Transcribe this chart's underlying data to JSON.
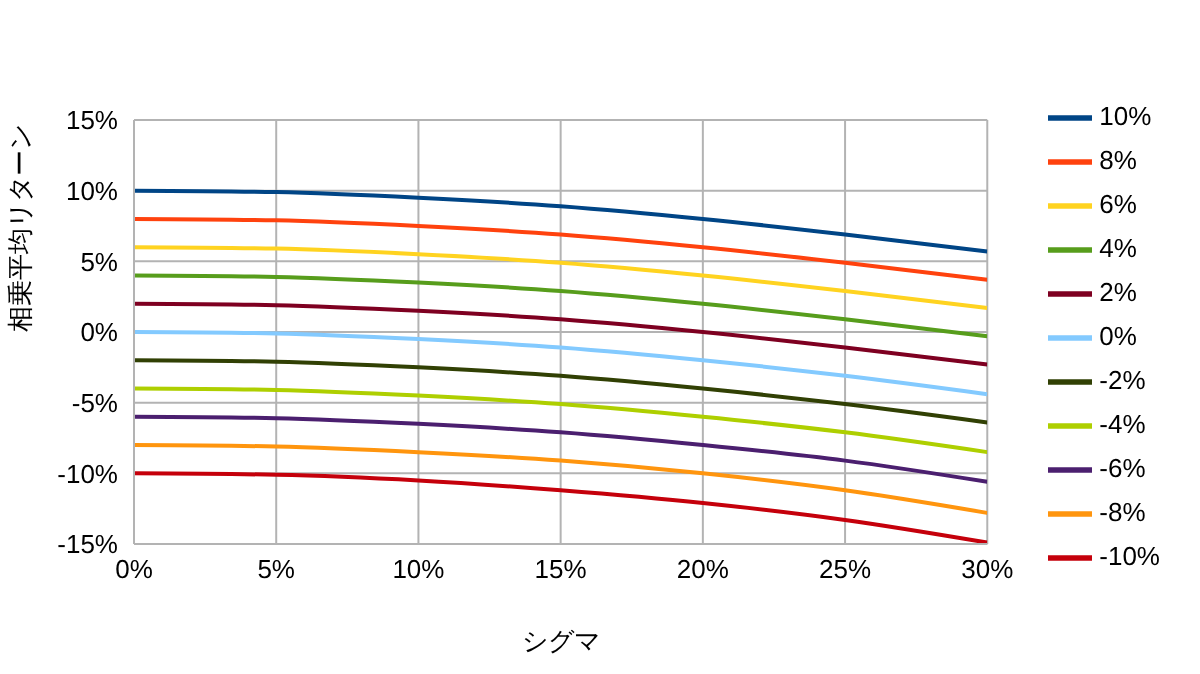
{
  "chart_data": {
    "type": "line",
    "xlabel": "シグマ",
    "ylabel": "相乗平均リターン",
    "x": [
      0,
      5,
      10,
      15,
      20,
      25,
      30
    ],
    "series": [
      {
        "name": "10%",
        "color": "#004586",
        "values": [
          10,
          9.9,
          9.5,
          8.9,
          8,
          6.9,
          5.7
        ]
      },
      {
        "name": "8%",
        "color": "#ff420e",
        "values": [
          8,
          7.9,
          7.5,
          6.9,
          6,
          4.9,
          3.7
        ]
      },
      {
        "name": "6%",
        "color": "#ffd320",
        "values": [
          6,
          5.9,
          5.5,
          4.9,
          4,
          2.9,
          1.7
        ]
      },
      {
        "name": "4%",
        "color": "#579d1c",
        "values": [
          4,
          3.9,
          3.5,
          2.9,
          2,
          0.9,
          -0.3
        ]
      },
      {
        "name": "2%",
        "color": "#7e0021",
        "values": [
          2,
          1.9,
          1.5,
          0.9,
          0,
          -1.1,
          -2.3
        ]
      },
      {
        "name": "0%",
        "color": "#83caff",
        "values": [
          0,
          -0.1,
          -0.5,
          -1.1,
          -2,
          -3.1,
          -4.4
        ]
      },
      {
        "name": "-2%",
        "color": "#314004",
        "values": [
          -2,
          -2.1,
          -2.5,
          -3.1,
          -4,
          -5.1,
          -6.4
        ]
      },
      {
        "name": "-4%",
        "color": "#aecf00",
        "values": [
          -4,
          -4.1,
          -4.5,
          -5.1,
          -6,
          -7.1,
          -8.5
        ]
      },
      {
        "name": "-6%",
        "color": "#4b1f6f",
        "values": [
          -6,
          -6.1,
          -6.5,
          -7.1,
          -8,
          -9.1,
          -10.6
        ]
      },
      {
        "name": "-8%",
        "color": "#ff950e",
        "values": [
          -8,
          -8.1,
          -8.5,
          -9.1,
          -10,
          -11.2,
          -12.8
        ]
      },
      {
        "name": "-10%",
        "color": "#c5000b",
        "values": [
          -10,
          -10.1,
          -10.5,
          -11.2,
          -12.1,
          -13.3,
          -14.9
        ]
      }
    ],
    "xlim": [
      0,
      30
    ],
    "xticks": [
      {
        "value": 0,
        "label": "0%"
      },
      {
        "value": 5,
        "label": "5%"
      },
      {
        "value": 10,
        "label": "10%"
      },
      {
        "value": 15,
        "label": "15%"
      },
      {
        "value": 20,
        "label": "20%"
      },
      {
        "value": 25,
        "label": "25%"
      },
      {
        "value": 30,
        "label": "30%"
      }
    ],
    "ylim": [
      -15,
      15
    ],
    "yticks": [
      {
        "value": -15,
        "label": "-15%"
      },
      {
        "value": -10,
        "label": "-10%"
      },
      {
        "value": -5,
        "label": "-5%"
      },
      {
        "value": 0,
        "label": "0%"
      },
      {
        "value": 5,
        "label": "5%"
      },
      {
        "value": 10,
        "label": "10%"
      },
      {
        "value": 15,
        "label": "15%"
      }
    ],
    "grid": true,
    "legend": "right",
    "marker": "none",
    "line_style": "solid"
  }
}
